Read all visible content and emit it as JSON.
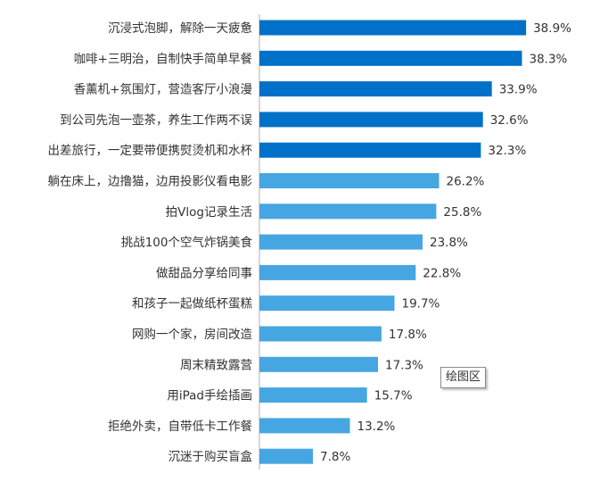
{
  "chart_data": {
    "type": "bar",
    "orientation": "horizontal",
    "categories": [
      "沉浸式泡脚，解除一天疲惫",
      "咖啡+三明治，自制快手简单早餐",
      "香薰机+氛围灯，营造客厅小浪漫",
      "到公司先泡一壶茶，养生工作两不误",
      "出差旅行，一定要带便携熨烫机和水杯",
      "躺在床上，边撸猫，边用投影仪看电影",
      "拍Vlog记录生活",
      "挑战100个空气炸锅美食",
      "做甜品分享给同事",
      "和孩子一起做纸杯蛋糕",
      "网购一个家，房间改造",
      "周末精致露营",
      "用iPad手绘插画",
      "拒绝外卖，自带低卡工作餐",
      "沉迷于购买盲盒"
    ],
    "values": [
      38.9,
      38.3,
      33.9,
      32.6,
      32.3,
      26.2,
      25.8,
      23.8,
      22.8,
      19.7,
      17.8,
      17.3,
      15.7,
      13.2,
      7.8
    ],
    "value_labels": [
      "38.9%",
      "38.3%",
      "33.9%",
      "32.6%",
      "32.3%",
      "26.2%",
      "25.8%",
      "23.8%",
      "22.8%",
      "19.7%",
      "17.8%",
      "17.3%",
      "15.7%",
      "13.2%",
      "7.8%"
    ],
    "highlight_top_n": 5,
    "colors": {
      "highlight": "#0070C8",
      "normal": "#45A6E2"
    },
    "grid": false,
    "xlim": [
      0,
      40
    ]
  },
  "tooltip": {
    "label": "绘图区"
  }
}
